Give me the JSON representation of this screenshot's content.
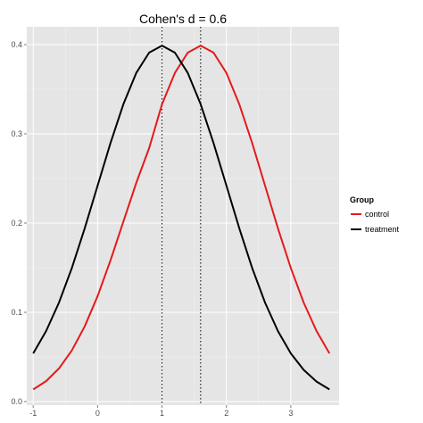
{
  "chart_data": {
    "type": "line",
    "title": "Cohen's d = 0.6",
    "xlabel": "",
    "ylabel": "",
    "xlim": [
      -1.1,
      3.75
    ],
    "ylim": [
      -0.004,
      0.42
    ],
    "x_ticks": [
      -1,
      0,
      1,
      2,
      3
    ],
    "x_tick_labels": [
      "-1",
      "0",
      "1",
      "2",
      "3"
    ],
    "y_ticks": [
      0.0,
      0.1,
      0.2,
      0.3,
      0.4
    ],
    "y_tick_labels": [
      "0.0",
      "0.1",
      "0.2",
      "0.3",
      "0.4"
    ],
    "grid": true,
    "legend": {
      "title": "Group",
      "placement": "right"
    },
    "vlines": [
      1.0,
      1.6
    ],
    "vline_style": "dotted",
    "series": [
      {
        "name": "control",
        "color": "#e41a1c",
        "x": [
          -1.0,
          -0.8,
          -0.6,
          -0.4,
          -0.2,
          0.0,
          0.2,
          0.4,
          0.6,
          0.8,
          1.0,
          1.2,
          1.4,
          1.6,
          1.8,
          2.0,
          2.2,
          2.4,
          2.6,
          2.8,
          3.0,
          3.2,
          3.4,
          3.6
        ],
        "y": [
          0.0136,
          0.0229,
          0.0371,
          0.0573,
          0.0843,
          0.1182,
          0.1582,
          0.2017,
          0.245,
          0.284,
          0.3332,
          0.3683,
          0.391,
          0.3989,
          0.391,
          0.3683,
          0.3332,
          0.2897,
          0.242,
          0.1942,
          0.1497,
          0.1109,
          0.079,
          0.054
        ]
      },
      {
        "name": "treatment",
        "color": "#000000",
        "x": [
          -1.0,
          -0.8,
          -0.6,
          -0.4,
          -0.2,
          0.0,
          0.2,
          0.4,
          0.6,
          0.8,
          1.0,
          1.2,
          1.4,
          1.6,
          1.8,
          2.0,
          2.2,
          2.4,
          2.6,
          2.8,
          3.0,
          3.2,
          3.4,
          3.6
        ],
        "y": [
          0.054,
          0.079,
          0.1109,
          0.1497,
          0.1942,
          0.242,
          0.2897,
          0.3332,
          0.3683,
          0.391,
          0.3989,
          0.391,
          0.3683,
          0.3332,
          0.2897,
          0.242,
          0.1942,
          0.1497,
          0.1109,
          0.079,
          0.054,
          0.0355,
          0.0224,
          0.0136
        ]
      }
    ]
  }
}
